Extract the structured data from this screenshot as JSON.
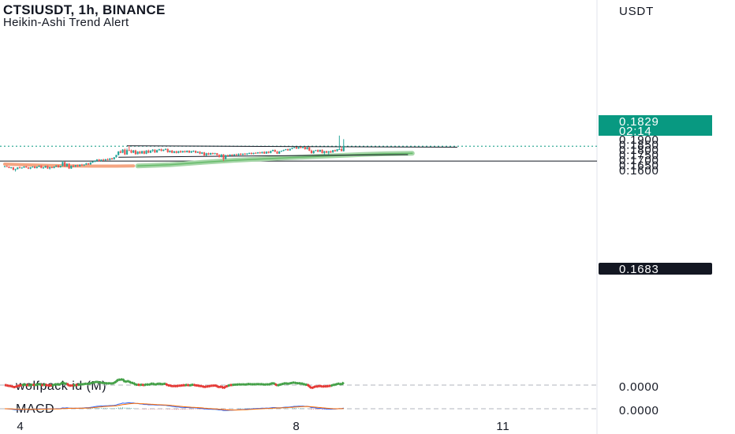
{
  "header": {
    "title": "CTSIUSDT, 1h, BINANCE",
    "subtitle": "Heikin-Ashi Trend Alert"
  },
  "price_axis": {
    "currency": "USDT",
    "ticks": [
      "0.1900",
      "0.1850",
      "0.1800",
      "0.1750",
      "0.1700",
      "0.1650",
      "0.1600"
    ],
    "current_price": "0.1829",
    "countdown": "02:14",
    "marked_level": "0.1683"
  },
  "time_axis": {
    "ticks": [
      "4",
      "8",
      "11"
    ]
  },
  "indicators": {
    "wolfpack_label": "wolfpack id (M)",
    "wolfpack_value": "0.0000",
    "macd_label": "MACD",
    "macd_value": "0.0000"
  },
  "colors": {
    "up": "#26a69a",
    "down": "#ef5350",
    "current_price_tag": "#089981",
    "level_tag": "#131722",
    "ma_line": "#a5d6a7",
    "ema_line": "#f4a582",
    "wolfpack_up": "#43a047",
    "wolfpack_down": "#e53935",
    "macd_line": "#2962ff",
    "signal_line": "#ff6d00"
  },
  "chart_data": {
    "type": "candlestick",
    "symbol": "CTSIUSDT",
    "interval": "1h",
    "exchange": "BINANCE",
    "ylim": [
      0.1575,
      0.194
    ],
    "current_price": 0.1829,
    "horizontal_level": 0.1683,
    "trendlines": [
      {
        "from": [
          57,
          0.1833
        ],
        "to": [
          211,
          0.1819
        ]
      },
      {
        "from": [
          53,
          0.1721
        ],
        "to": [
          188,
          0.1746
        ]
      }
    ],
    "candles_ohlc": [
      [
        0.1628,
        0.1635,
        0.1622,
        0.1632
      ],
      [
        0.1632,
        0.164,
        0.1625,
        0.1628
      ],
      [
        0.1628,
        0.1631,
        0.1613,
        0.1616
      ],
      [
        0.1616,
        0.1624,
        0.161,
        0.1621
      ],
      [
        0.1621,
        0.1625,
        0.1592,
        0.1598
      ],
      [
        0.1598,
        0.1608,
        0.158,
        0.1604
      ],
      [
        0.1604,
        0.1622,
        0.16,
        0.162
      ],
      [
        0.162,
        0.163,
        0.1612,
        0.1615
      ],
      [
        0.1615,
        0.1622,
        0.1608,
        0.1619
      ],
      [
        0.1619,
        0.1633,
        0.1615,
        0.1629
      ],
      [
        0.1629,
        0.1637,
        0.1616,
        0.162
      ],
      [
        0.162,
        0.1625,
        0.1604,
        0.1609
      ],
      [
        0.1609,
        0.1625,
        0.1603,
        0.1622
      ],
      [
        0.1622,
        0.1632,
        0.1618,
        0.1628
      ],
      [
        0.1628,
        0.1635,
        0.161,
        0.1614
      ],
      [
        0.1614,
        0.163,
        0.161,
        0.1627
      ],
      [
        0.1627,
        0.164,
        0.1622,
        0.1638
      ],
      [
        0.1638,
        0.1642,
        0.1611,
        0.1616
      ],
      [
        0.1616,
        0.1625,
        0.1606,
        0.162
      ],
      [
        0.162,
        0.1638,
        0.1615,
        0.1635
      ],
      [
        0.1635,
        0.164,
        0.1605,
        0.161
      ],
      [
        0.161,
        0.1626,
        0.16,
        0.1623
      ],
      [
        0.1623,
        0.163,
        0.1612,
        0.1615
      ],
      [
        0.1615,
        0.163,
        0.1611,
        0.1628
      ],
      [
        0.1628,
        0.1642,
        0.1623,
        0.164
      ],
      [
        0.164,
        0.1645,
        0.1618,
        0.1622
      ],
      [
        0.1622,
        0.1638,
        0.1618,
        0.1635
      ],
      [
        0.1635,
        0.1685,
        0.163,
        0.1672
      ],
      [
        0.1672,
        0.1678,
        0.1625,
        0.163
      ],
      [
        0.163,
        0.166,
        0.1626,
        0.1657
      ],
      [
        0.1657,
        0.1663,
        0.1605,
        0.161
      ],
      [
        0.161,
        0.164,
        0.1606,
        0.1637
      ],
      [
        0.1637,
        0.165,
        0.1622,
        0.1628
      ],
      [
        0.1628,
        0.1645,
        0.1624,
        0.1642
      ],
      [
        0.1642,
        0.1648,
        0.1625,
        0.1631
      ],
      [
        0.1631,
        0.165,
        0.1628,
        0.1647
      ],
      [
        0.1647,
        0.1655,
        0.1636,
        0.1645
      ],
      [
        0.1645,
        0.1652,
        0.1634,
        0.1648
      ],
      [
        0.1648,
        0.1665,
        0.1644,
        0.166
      ],
      [
        0.166,
        0.1664,
        0.1645,
        0.165
      ],
      [
        0.165,
        0.1672,
        0.1646,
        0.1669
      ],
      [
        0.1669,
        0.168,
        0.1664,
        0.1676
      ],
      [
        0.1676,
        0.169,
        0.1671,
        0.1686
      ],
      [
        0.1686,
        0.1702,
        0.1681,
        0.1698
      ],
      [
        0.1698,
        0.1703,
        0.168,
        0.1685
      ],
      [
        0.1685,
        0.17,
        0.1681,
        0.1697
      ],
      [
        0.1697,
        0.1705,
        0.1686,
        0.169
      ],
      [
        0.169,
        0.1704,
        0.1686,
        0.1701
      ],
      [
        0.1701,
        0.171,
        0.169,
        0.1694
      ],
      [
        0.1694,
        0.1712,
        0.169,
        0.1709
      ],
      [
        0.1709,
        0.1715,
        0.1696,
        0.17
      ],
      [
        0.17,
        0.1722,
        0.1697,
        0.172
      ],
      [
        0.172,
        0.1745,
        0.1717,
        0.1743
      ],
      [
        0.1743,
        0.178,
        0.1738,
        0.1777
      ],
      [
        0.1777,
        0.179,
        0.176,
        0.1765
      ],
      [
        0.1765,
        0.18,
        0.176,
        0.1795
      ],
      [
        0.1795,
        0.1805,
        0.1742,
        0.1748
      ],
      [
        0.1748,
        0.1806,
        0.1744,
        0.179
      ],
      [
        0.179,
        0.1833,
        0.1785,
        0.1788
      ],
      [
        0.1788,
        0.1796,
        0.176,
        0.1765
      ],
      [
        0.1765,
        0.1792,
        0.1761,
        0.1787
      ],
      [
        0.1787,
        0.1794,
        0.1745,
        0.1751
      ],
      [
        0.1751,
        0.178,
        0.1748,
        0.1776
      ],
      [
        0.1776,
        0.1783,
        0.1752,
        0.1758
      ],
      [
        0.1758,
        0.1785,
        0.1754,
        0.178
      ],
      [
        0.178,
        0.1786,
        0.175,
        0.1755
      ],
      [
        0.1755,
        0.179,
        0.1751,
        0.1786
      ],
      [
        0.1786,
        0.1795,
        0.176,
        0.1765
      ],
      [
        0.1765,
        0.179,
        0.1761,
        0.1785
      ],
      [
        0.1785,
        0.18,
        0.1771,
        0.1794
      ],
      [
        0.1794,
        0.1799,
        0.1762,
        0.1768
      ],
      [
        0.1768,
        0.1795,
        0.1764,
        0.179
      ],
      [
        0.179,
        0.1803,
        0.1785,
        0.1799
      ],
      [
        0.1799,
        0.1805,
        0.1778,
        0.1783
      ],
      [
        0.1783,
        0.1798,
        0.1779,
        0.1794
      ],
      [
        0.1794,
        0.1807,
        0.1789,
        0.1802
      ],
      [
        0.1802,
        0.1806,
        0.1765,
        0.177
      ],
      [
        0.177,
        0.1788,
        0.1766,
        0.1785
      ],
      [
        0.1785,
        0.1792,
        0.176,
        0.1764
      ],
      [
        0.1764,
        0.1782,
        0.176,
        0.1779
      ],
      [
        0.1779,
        0.1784,
        0.1758,
        0.1763
      ],
      [
        0.1763,
        0.1783,
        0.1759,
        0.178
      ],
      [
        0.178,
        0.1788,
        0.1764,
        0.1768
      ],
      [
        0.1768,
        0.1785,
        0.1764,
        0.1781
      ],
      [
        0.1781,
        0.1787,
        0.1765,
        0.177
      ],
      [
        0.177,
        0.1788,
        0.1766,
        0.1784
      ],
      [
        0.1784,
        0.1789,
        0.1762,
        0.1766
      ],
      [
        0.1766,
        0.1784,
        0.1762,
        0.178
      ],
      [
        0.178,
        0.1788,
        0.177,
        0.1783
      ],
      [
        0.1783,
        0.1787,
        0.176,
        0.1765
      ],
      [
        0.1765,
        0.1778,
        0.1761,
        0.1775
      ],
      [
        0.1775,
        0.178,
        0.175,
        0.1755
      ],
      [
        0.1755,
        0.1772,
        0.1751,
        0.1768
      ],
      [
        0.1768,
        0.1773,
        0.1733,
        0.1738
      ],
      [
        0.1738,
        0.1764,
        0.1734,
        0.176
      ],
      [
        0.176,
        0.1766,
        0.1742,
        0.1747
      ],
      [
        0.1747,
        0.1765,
        0.1743,
        0.1761
      ],
      [
        0.1761,
        0.1766,
        0.1748,
        0.1752
      ],
      [
        0.1752,
        0.1764,
        0.1748,
        0.176
      ],
      [
        0.176,
        0.1762,
        0.1738,
        0.1742
      ],
      [
        0.1742,
        0.1751,
        0.1718,
        0.1722
      ],
      [
        0.1722,
        0.1751,
        0.1718,
        0.1748
      ],
      [
        0.1748,
        0.1752,
        0.1683,
        0.1702
      ],
      [
        0.1702,
        0.1745,
        0.1698,
        0.174
      ],
      [
        0.174,
        0.1747,
        0.173,
        0.1735
      ],
      [
        0.1735,
        0.175,
        0.1731,
        0.1746
      ],
      [
        0.1746,
        0.1751,
        0.1734,
        0.1738
      ],
      [
        0.1738,
        0.1752,
        0.1734,
        0.1749
      ],
      [
        0.1749,
        0.1755,
        0.1738,
        0.1741
      ],
      [
        0.1741,
        0.1758,
        0.1737,
        0.1754
      ],
      [
        0.1754,
        0.1761,
        0.174,
        0.1744
      ],
      [
        0.1744,
        0.1758,
        0.174,
        0.1755
      ],
      [
        0.1755,
        0.1762,
        0.1742,
        0.1747
      ],
      [
        0.1747,
        0.176,
        0.1743,
        0.1757
      ],
      [
        0.1757,
        0.1766,
        0.175,
        0.1762
      ],
      [
        0.1762,
        0.1768,
        0.1748,
        0.1752
      ],
      [
        0.1752,
        0.1765,
        0.1748,
        0.1763
      ],
      [
        0.1763,
        0.177,
        0.1756,
        0.1759
      ],
      [
        0.1759,
        0.1771,
        0.1755,
        0.1768
      ],
      [
        0.1768,
        0.1774,
        0.1755,
        0.176
      ],
      [
        0.176,
        0.1776,
        0.1756,
        0.1772
      ],
      [
        0.1772,
        0.178,
        0.1752,
        0.1757
      ],
      [
        0.1757,
        0.1779,
        0.1753,
        0.1775
      ],
      [
        0.1775,
        0.178,
        0.1758,
        0.1763
      ],
      [
        0.1763,
        0.1785,
        0.1759,
        0.1782
      ],
      [
        0.1782,
        0.1795,
        0.1778,
        0.1792
      ],
      [
        0.1792,
        0.1797,
        0.177,
        0.1775
      ],
      [
        0.1775,
        0.1783,
        0.1752,
        0.1756
      ],
      [
        0.1756,
        0.1781,
        0.1752,
        0.1778
      ],
      [
        0.1778,
        0.1786,
        0.1773,
        0.1783
      ],
      [
        0.1783,
        0.1795,
        0.1779,
        0.1792
      ],
      [
        0.1792,
        0.1802,
        0.1788,
        0.1799
      ],
      [
        0.1799,
        0.1805,
        0.1784,
        0.1788
      ],
      [
        0.1788,
        0.1806,
        0.1784,
        0.1803
      ],
      [
        0.1803,
        0.1815,
        0.1799,
        0.1812
      ],
      [
        0.1812,
        0.1822,
        0.1808,
        0.182
      ],
      [
        0.182,
        0.1823,
        0.1802,
        0.1806
      ],
      [
        0.1806,
        0.1825,
        0.1802,
        0.1821
      ],
      [
        0.1821,
        0.1826,
        0.1808,
        0.1812
      ],
      [
        0.1812,
        0.1827,
        0.1808,
        0.1823
      ],
      [
        0.1823,
        0.1826,
        0.1795,
        0.18
      ],
      [
        0.18,
        0.182,
        0.1796,
        0.1817
      ],
      [
        0.1817,
        0.182,
        0.178,
        0.1785
      ],
      [
        0.1785,
        0.1795,
        0.1756,
        0.176
      ],
      [
        0.176,
        0.1787,
        0.1756,
        0.1783
      ],
      [
        0.1783,
        0.1793,
        0.1779,
        0.179
      ],
      [
        0.179,
        0.1797,
        0.177,
        0.1775
      ],
      [
        0.1775,
        0.1795,
        0.1771,
        0.1793
      ],
      [
        0.1793,
        0.1798,
        0.1758,
        0.1762
      ],
      [
        0.1762,
        0.1783,
        0.1741,
        0.178
      ],
      [
        0.178,
        0.1784,
        0.1762,
        0.1765
      ],
      [
        0.1765,
        0.1782,
        0.1745,
        0.1779
      ],
      [
        0.1779,
        0.1786,
        0.1762,
        0.1768
      ],
      [
        0.1768,
        0.1792,
        0.1764,
        0.179
      ],
      [
        0.179,
        0.1795,
        0.1775,
        0.178
      ],
      [
        0.178,
        0.1801,
        0.1776,
        0.1799
      ],
      [
        0.1799,
        0.1933,
        0.1795,
        0.18
      ],
      [
        0.18,
        0.1826,
        0.1778,
        0.1781
      ],
      [
        0.1781,
        0.1898,
        0.1777,
        0.1829
      ]
    ],
    "moving_average": [
      [
        62,
        0.1635
      ],
      [
        77,
        0.1647
      ],
      [
        92,
        0.167
      ],
      [
        107,
        0.1691
      ],
      [
        122,
        0.1706
      ],
      [
        137,
        0.172
      ],
      [
        152,
        0.1734
      ],
      [
        167,
        0.1747
      ],
      [
        177,
        0.1754
      ],
      [
        190,
        0.1759
      ]
    ],
    "ema_line": [
      [
        0,
        0.1653
      ],
      [
        10,
        0.1646
      ],
      [
        20,
        0.164
      ],
      [
        30,
        0.1635
      ],
      [
        40,
        0.1633
      ],
      [
        52,
        0.1633
      ],
      [
        60,
        0.1636
      ]
    ],
    "indicator_panes": [
      {
        "name": "wolfpack id (M)",
        "value": 0.0
      },
      {
        "name": "MACD",
        "value": 0.0
      }
    ]
  }
}
